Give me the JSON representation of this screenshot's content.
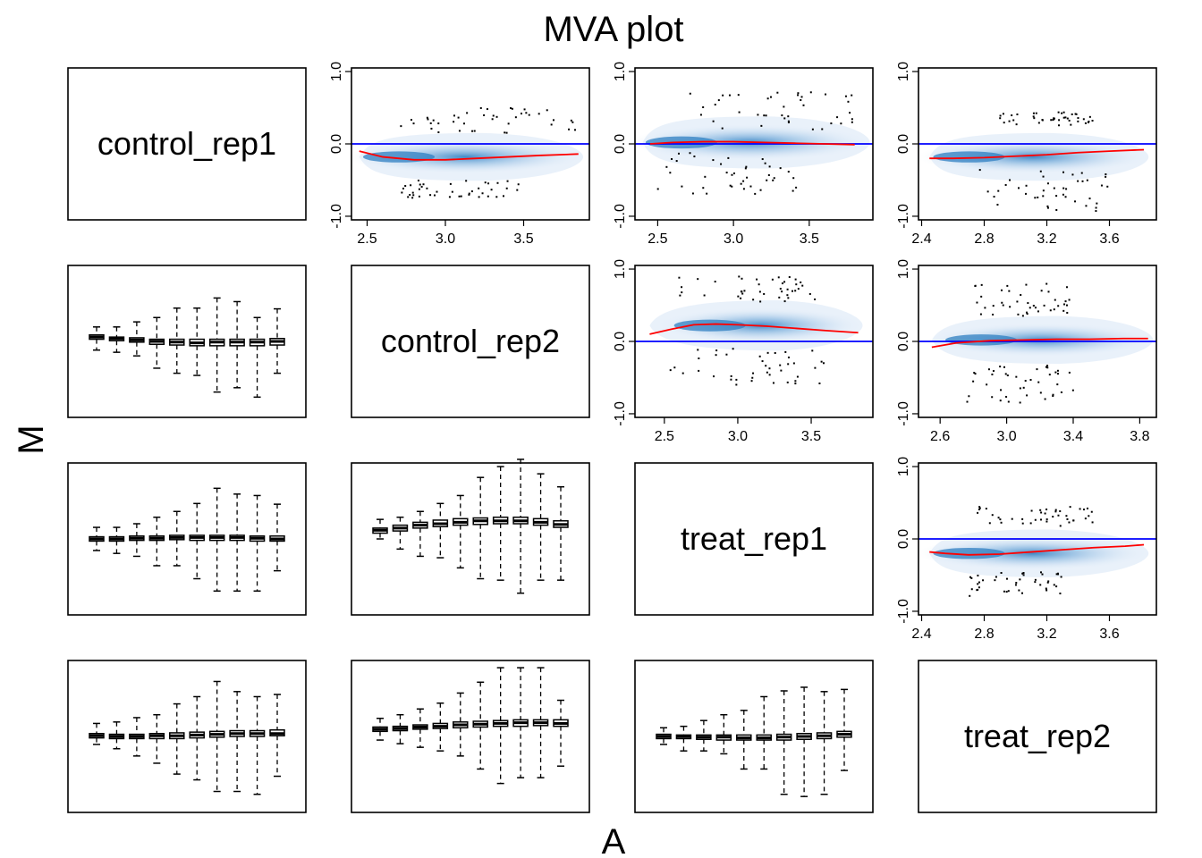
{
  "chart_data": {
    "type": "scatter",
    "title": "MVA plot",
    "xlabel": "A",
    "ylabel": "M",
    "samples": [
      "control_rep1",
      "control_rep2",
      "treat_rep1",
      "treat_rep2"
    ],
    "colors": {
      "density": "#2f7fc1",
      "loess": "#ff0000",
      "zero_line": "#0000ff",
      "outliers": "#000000",
      "box": "#000000"
    },
    "ma_panels": [
      {
        "row": 0,
        "col": 1,
        "xlim": [
          2.4,
          3.92
        ],
        "ylim": [
          -1.05,
          1.05
        ],
        "xticks": [
          2.5,
          3.0,
          3.5
        ],
        "xtick_labels": [
          "2.5",
          "3.0",
          "3.5"
        ],
        "yticks": [
          -1.0,
          0.0,
          1.0
        ],
        "ytick_labels": [
          "-1.0",
          "0.0",
          "1.0"
        ],
        "loess_x": [
          2.45,
          2.6,
          2.8,
          3.0,
          3.2,
          3.4,
          3.6,
          3.85
        ],
        "loess_y": [
          -0.1,
          -0.18,
          -0.22,
          -0.22,
          -0.2,
          -0.18,
          -0.16,
          -0.14
        ],
        "cloud": {
          "x_start": 2.45,
          "x_peak": 2.6,
          "x_end": 3.88,
          "spread": 0.55,
          "peak_y": -0.18
        },
        "upper_outliers": {
          "x_range": [
            2.7,
            3.85
          ],
          "y_range": [
            0.15,
            0.5
          ]
        },
        "lower_outliers": {
          "x_range": [
            2.7,
            3.5
          ],
          "y_range": [
            -0.75,
            -0.5
          ]
        }
      },
      {
        "row": 0,
        "col": 2,
        "xlim": [
          2.35,
          3.92
        ],
        "ylim": [
          -1.05,
          1.05
        ],
        "xticks": [
          2.5,
          3.0,
          3.5
        ],
        "xtick_labels": [
          "2.5",
          "3.0",
          "3.5"
        ],
        "yticks": [
          -1.0,
          0.0,
          1.0
        ],
        "ytick_labels": [
          "-1.0",
          "0.0",
          "1.0"
        ],
        "loess_x": [
          2.45,
          2.6,
          2.8,
          3.0,
          3.2,
          3.4,
          3.6,
          3.8
        ],
        "loess_y": [
          0.0,
          0.02,
          0.03,
          0.03,
          0.02,
          0.01,
          0.0,
          -0.01
        ],
        "cloud": {
          "x_start": 2.4,
          "x_peak": 2.55,
          "x_end": 3.9,
          "spread": 0.6,
          "peak_y": 0.02
        },
        "upper_outliers": {
          "x_range": [
            2.65,
            3.85
          ],
          "y_range": [
            0.2,
            0.72
          ]
        },
        "lower_outliers": {
          "x_range": [
            2.5,
            3.45
          ],
          "y_range": [
            -0.7,
            -0.12
          ]
        }
      },
      {
        "row": 0,
        "col": 3,
        "xlim": [
          2.38,
          3.9
        ],
        "ylim": [
          -1.05,
          1.05
        ],
        "xticks": [
          2.4,
          2.8,
          3.2,
          3.6
        ],
        "xtick_labels": [
          "2.4",
          "2.8",
          "3.2",
          "3.6"
        ],
        "yticks": [
          -1.0,
          0.0,
          1.0
        ],
        "ytick_labels": [
          "-1.0",
          "0.0",
          "1.0"
        ],
        "loess_x": [
          2.45,
          2.6,
          2.8,
          3.0,
          3.2,
          3.4,
          3.6,
          3.82
        ],
        "loess_y": [
          -0.2,
          -0.2,
          -0.19,
          -0.17,
          -0.15,
          -0.12,
          -0.1,
          -0.08
        ],
        "cloud": {
          "x_start": 2.45,
          "x_peak": 2.6,
          "x_end": 3.85,
          "spread": 0.55,
          "peak_y": -0.18
        },
        "upper_outliers": {
          "x_range": [
            2.9,
            3.5
          ],
          "y_range": [
            0.25,
            0.45
          ]
        },
        "lower_outliers": {
          "x_range": [
            2.7,
            3.6
          ],
          "y_range": [
            -0.95,
            -0.35
          ]
        }
      },
      {
        "row": 1,
        "col": 2,
        "xlim": [
          2.3,
          3.92
        ],
        "ylim": [
          -1.05,
          1.05
        ],
        "xticks": [
          2.5,
          3.0,
          3.5
        ],
        "xtick_labels": [
          "2.5",
          "3.0",
          "3.5"
        ],
        "yticks": [
          -1.0,
          0.0,
          1.0
        ],
        "ytick_labels": [
          "-1.0",
          "0.0",
          "1.0"
        ],
        "loess_x": [
          2.4,
          2.55,
          2.7,
          2.85,
          3.0,
          3.2,
          3.4,
          3.6,
          3.82
        ],
        "loess_y": [
          0.1,
          0.17,
          0.23,
          0.24,
          0.23,
          0.21,
          0.18,
          0.15,
          0.12
        ],
        "cloud": {
          "x_start": 2.4,
          "x_peak": 2.7,
          "x_end": 3.85,
          "spread": 0.58,
          "peak_y": 0.22
        },
        "upper_outliers": {
          "x_range": [
            2.6,
            3.55
          ],
          "y_range": [
            0.55,
            0.92
          ]
        },
        "lower_outliers": {
          "x_range": [
            2.5,
            3.6
          ],
          "y_range": [
            -0.6,
            -0.1
          ]
        }
      },
      {
        "row": 1,
        "col": 3,
        "xlim": [
          2.47,
          3.9
        ],
        "ylim": [
          -1.05,
          1.05
        ],
        "xticks": [
          2.6,
          3.0,
          3.4,
          3.8
        ],
        "xtick_labels": [
          "2.6",
          "3.0",
          "3.4",
          "3.8"
        ],
        "yticks": [
          -1.0,
          0.0,
          1.0
        ],
        "ytick_labels": [
          "-1.0",
          "0.0",
          "1.0"
        ],
        "loess_x": [
          2.55,
          2.7,
          2.9,
          3.1,
          3.3,
          3.5,
          3.7,
          3.85
        ],
        "loess_y": [
          -0.08,
          -0.02,
          0.01,
          0.02,
          0.03,
          0.03,
          0.04,
          0.04
        ],
        "cloud": {
          "x_start": 2.55,
          "x_peak": 2.75,
          "x_end": 3.88,
          "spread": 0.55,
          "peak_y": 0.02
        },
        "upper_outliers": {
          "x_range": [
            2.8,
            3.4
          ],
          "y_range": [
            0.35,
            0.8
          ]
        },
        "lower_outliers": {
          "x_range": [
            2.75,
            3.4
          ],
          "y_range": [
            -0.85,
            -0.3
          ]
        }
      },
      {
        "row": 2,
        "col": 3,
        "xlim": [
          2.38,
          3.9
        ],
        "ylim": [
          -1.05,
          1.05
        ],
        "xticks": [
          2.4,
          2.8,
          3.2,
          3.6
        ],
        "xtick_labels": [
          "2.4",
          "2.8",
          "3.2",
          "3.6"
        ],
        "yticks": [
          -1.0,
          0.0,
          1.0
        ],
        "ytick_labels": [
          "-1.0",
          "0.0",
          "1.0"
        ],
        "loess_x": [
          2.45,
          2.55,
          2.7,
          2.9,
          3.1,
          3.3,
          3.5,
          3.7,
          3.82
        ],
        "loess_y": [
          -0.18,
          -0.2,
          -0.22,
          -0.21,
          -0.18,
          -0.15,
          -0.12,
          -0.1,
          -0.08
        ],
        "cloud": {
          "x_start": 2.45,
          "x_peak": 2.6,
          "x_end": 3.85,
          "spread": 0.55,
          "peak_y": -0.2
        },
        "upper_outliers": {
          "x_range": [
            2.7,
            3.5
          ],
          "y_range": [
            0.18,
            0.45
          ]
        },
        "lower_outliers": {
          "x_range": [
            2.7,
            3.3
          ],
          "y_range": [
            -0.8,
            -0.45
          ]
        }
      }
    ],
    "box_panels": [
      {
        "row": 1,
        "col": 0,
        "ylim": [
          -1.05,
          1.05
        ],
        "boxes": [
          {
            "median": 0.06,
            "q1": 0.03,
            "q3": 0.09,
            "lo": -0.12,
            "hi": 0.2
          },
          {
            "median": 0.04,
            "q1": 0.01,
            "q3": 0.06,
            "lo": -0.15,
            "hi": 0.2
          },
          {
            "median": 0.02,
            "q1": -0.01,
            "q3": 0.05,
            "lo": -0.2,
            "hi": 0.27
          },
          {
            "median": 0.0,
            "q1": -0.04,
            "q3": 0.03,
            "lo": -0.37,
            "hi": 0.33
          },
          {
            "median": -0.01,
            "q1": -0.05,
            "q3": 0.03,
            "lo": -0.44,
            "hi": 0.46
          },
          {
            "median": -0.02,
            "q1": -0.06,
            "q3": 0.03,
            "lo": -0.47,
            "hi": 0.46
          },
          {
            "median": -0.01,
            "q1": -0.06,
            "q3": 0.03,
            "lo": -0.7,
            "hi": 0.6
          },
          {
            "median": -0.01,
            "q1": -0.06,
            "q3": 0.03,
            "lo": -0.64,
            "hi": 0.55
          },
          {
            "median": -0.01,
            "q1": -0.06,
            "q3": 0.03,
            "lo": -0.77,
            "hi": 0.33
          },
          {
            "median": 0.0,
            "q1": -0.05,
            "q3": 0.04,
            "lo": -0.44,
            "hi": 0.45
          }
        ]
      },
      {
        "row": 2,
        "col": 0,
        "ylim": [
          -1.05,
          1.05
        ],
        "boxes": [
          {
            "median": 0.0,
            "q1": -0.03,
            "q3": 0.03,
            "lo": -0.16,
            "hi": 0.16
          },
          {
            "median": 0.0,
            "q1": -0.03,
            "q3": 0.03,
            "lo": -0.2,
            "hi": 0.16
          },
          {
            "median": 0.01,
            "q1": -0.02,
            "q3": 0.04,
            "lo": -0.24,
            "hi": 0.21
          },
          {
            "median": 0.01,
            "q1": -0.02,
            "q3": 0.04,
            "lo": -0.37,
            "hi": 0.3
          },
          {
            "median": 0.02,
            "q1": -0.01,
            "q3": 0.05,
            "lo": -0.37,
            "hi": 0.38
          },
          {
            "median": 0.02,
            "q1": -0.02,
            "q3": 0.05,
            "lo": -0.55,
            "hi": 0.49
          },
          {
            "median": 0.02,
            "q1": -0.02,
            "q3": 0.05,
            "lo": -0.72,
            "hi": 0.7
          },
          {
            "median": 0.02,
            "q1": -0.02,
            "q3": 0.05,
            "lo": -0.72,
            "hi": 0.62
          },
          {
            "median": 0.01,
            "q1": -0.03,
            "q3": 0.04,
            "lo": -0.72,
            "hi": 0.6
          },
          {
            "median": 0.0,
            "q1": -0.03,
            "q3": 0.04,
            "lo": -0.44,
            "hi": 0.48
          }
        ]
      },
      {
        "row": 2,
        "col": 1,
        "ylim": [
          -1.05,
          1.05
        ],
        "boxes": [
          {
            "median": 0.12,
            "q1": 0.08,
            "q3": 0.15,
            "lo": 0.0,
            "hi": 0.27
          },
          {
            "median": 0.15,
            "q1": 0.11,
            "q3": 0.19,
            "lo": -0.14,
            "hi": 0.3
          },
          {
            "median": 0.19,
            "q1": 0.15,
            "q3": 0.23,
            "lo": -0.24,
            "hi": 0.38
          },
          {
            "median": 0.21,
            "q1": 0.17,
            "q3": 0.26,
            "lo": -0.26,
            "hi": 0.49
          },
          {
            "median": 0.23,
            "q1": 0.19,
            "q3": 0.28,
            "lo": -0.4,
            "hi": 0.6
          },
          {
            "median": 0.25,
            "q1": 0.2,
            "q3": 0.29,
            "lo": -0.55,
            "hi": 0.85
          },
          {
            "median": 0.25,
            "q1": 0.21,
            "q3": 0.3,
            "lo": -0.57,
            "hi": 1.0
          },
          {
            "median": 0.25,
            "q1": 0.21,
            "q3": 0.3,
            "lo": -0.75,
            "hi": 1.1
          },
          {
            "median": 0.23,
            "q1": 0.19,
            "q3": 0.28,
            "lo": -0.57,
            "hi": 0.9
          },
          {
            "median": 0.2,
            "q1": 0.16,
            "q3": 0.25,
            "lo": -0.57,
            "hi": 0.72
          }
        ]
      },
      {
        "row": 3,
        "col": 0,
        "ylim": [
          -1.05,
          1.05
        ],
        "boxes": [
          {
            "median": 0.01,
            "q1": -0.02,
            "q3": 0.04,
            "lo": -0.11,
            "hi": 0.18
          },
          {
            "median": 0.0,
            "q1": -0.03,
            "q3": 0.03,
            "lo": -0.17,
            "hi": 0.2
          },
          {
            "median": 0.0,
            "q1": -0.03,
            "q3": 0.03,
            "lo": -0.27,
            "hi": 0.26
          },
          {
            "median": 0.01,
            "q1": -0.03,
            "q3": 0.04,
            "lo": -0.37,
            "hi": 0.3
          },
          {
            "median": 0.01,
            "q1": -0.03,
            "q3": 0.05,
            "lo": -0.52,
            "hi": 0.45
          },
          {
            "median": 0.02,
            "q1": -0.02,
            "q3": 0.06,
            "lo": -0.6,
            "hi": 0.55
          },
          {
            "median": 0.03,
            "q1": -0.01,
            "q3": 0.07,
            "lo": -0.76,
            "hi": 0.76
          },
          {
            "median": 0.04,
            "q1": 0.0,
            "q3": 0.08,
            "lo": -0.76,
            "hi": 0.62
          },
          {
            "median": 0.04,
            "q1": 0.0,
            "q3": 0.08,
            "lo": -0.8,
            "hi": 0.55
          },
          {
            "median": 0.04,
            "q1": 0.01,
            "q3": 0.09,
            "lo": -0.55,
            "hi": 0.58
          }
        ]
      },
      {
        "row": 3,
        "col": 1,
        "ylim": [
          -1.05,
          1.05
        ],
        "boxes": [
          {
            "median": 0.1,
            "q1": 0.07,
            "q3": 0.13,
            "lo": -0.05,
            "hi": 0.25
          },
          {
            "median": 0.11,
            "q1": 0.08,
            "q3": 0.14,
            "lo": -0.1,
            "hi": 0.3
          },
          {
            "median": 0.13,
            "q1": 0.1,
            "q3": 0.16,
            "lo": -0.15,
            "hi": 0.38
          },
          {
            "median": 0.14,
            "q1": 0.11,
            "q3": 0.18,
            "lo": -0.2,
            "hi": 0.46
          },
          {
            "median": 0.16,
            "q1": 0.12,
            "q3": 0.2,
            "lo": -0.27,
            "hi": 0.6
          },
          {
            "median": 0.17,
            "q1": 0.13,
            "q3": 0.21,
            "lo": -0.45,
            "hi": 0.75
          },
          {
            "median": 0.18,
            "q1": 0.14,
            "q3": 0.22,
            "lo": -0.65,
            "hi": 0.95
          },
          {
            "median": 0.19,
            "q1": 0.14,
            "q3": 0.23,
            "lo": -0.57,
            "hi": 0.95
          },
          {
            "median": 0.19,
            "q1": 0.15,
            "q3": 0.23,
            "lo": -0.57,
            "hi": 0.95
          },
          {
            "median": 0.18,
            "q1": 0.14,
            "q3": 0.23,
            "lo": -0.41,
            "hi": 0.5
          }
        ]
      },
      {
        "row": 3,
        "col": 2,
        "ylim": [
          -1.05,
          1.05
        ],
        "boxes": [
          {
            "median": 0.0,
            "q1": -0.03,
            "q3": 0.03,
            "lo": -0.11,
            "hi": 0.12
          },
          {
            "median": 0.0,
            "q1": -0.03,
            "q3": 0.02,
            "lo": -0.2,
            "hi": 0.14
          },
          {
            "median": -0.01,
            "q1": -0.04,
            "q3": 0.02,
            "lo": -0.2,
            "hi": 0.22
          },
          {
            "median": -0.01,
            "q1": -0.05,
            "q3": 0.02,
            "lo": -0.24,
            "hi": 0.3
          },
          {
            "median": -0.02,
            "q1": -0.05,
            "q3": 0.02,
            "lo": -0.45,
            "hi": 0.36
          },
          {
            "median": -0.02,
            "q1": -0.05,
            "q3": 0.02,
            "lo": -0.45,
            "hi": 0.55
          },
          {
            "median": -0.01,
            "q1": -0.05,
            "q3": 0.03,
            "lo": -0.8,
            "hi": 0.63
          },
          {
            "median": 0.0,
            "q1": -0.04,
            "q3": 0.04,
            "lo": -0.83,
            "hi": 0.68
          },
          {
            "median": 0.01,
            "q1": -0.03,
            "q3": 0.05,
            "lo": -0.8,
            "hi": 0.62
          },
          {
            "median": 0.03,
            "q1": -0.01,
            "q3": 0.07,
            "lo": -0.47,
            "hi": 0.65
          }
        ]
      }
    ]
  }
}
